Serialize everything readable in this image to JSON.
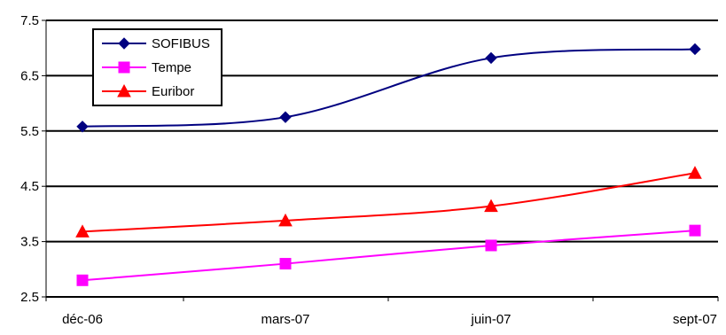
{
  "chart_data": {
    "type": "line",
    "categories": [
      "déc-06",
      "mars-07",
      "juin-07",
      "sept-07"
    ],
    "ylim": [
      2.5,
      7.5
    ],
    "yticks": [
      "2.5",
      "3.5",
      "4.5",
      "5.5",
      "6.5",
      "7.5"
    ],
    "grid": true,
    "legend_position": "top-left",
    "series": [
      {
        "name": "SOFIBUS",
        "values": [
          5.58,
          5.75,
          6.82,
          6.98
        ],
        "color": "#000080",
        "marker": "diamond",
        "smooth": true
      },
      {
        "name": "Tempe",
        "values": [
          2.8,
          3.1,
          3.43,
          3.7
        ],
        "color": "#ff00ff",
        "marker": "square",
        "smooth": true
      },
      {
        "name": "Euribor",
        "values": [
          3.68,
          3.88,
          4.14,
          4.74
        ],
        "color": "#ff0000",
        "marker": "triangle",
        "smooth": true
      }
    ]
  }
}
